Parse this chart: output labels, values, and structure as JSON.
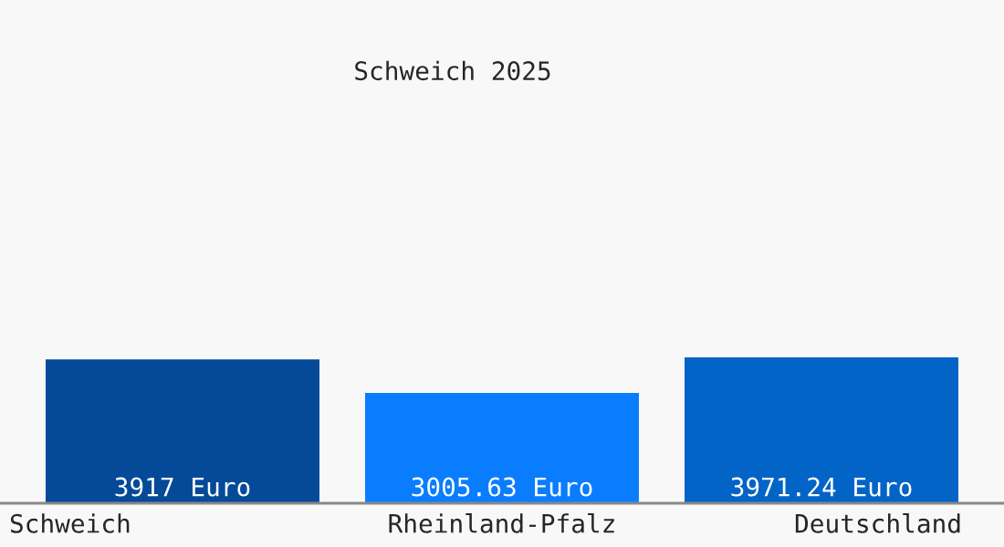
{
  "chart_data": {
    "type": "bar",
    "title": "Schweich 2025",
    "categories": [
      "Schweich",
      "Rheinland-Pfalz",
      "Deutschland"
    ],
    "values": [
      3917,
      3005.63,
      3971.24
    ],
    "colors": [
      "#044a98",
      "#0a7dff",
      "#0364c8"
    ],
    "value_labels": [
      "3917 Euro",
      "3005.63 Euro",
      "3971.24 Euro"
    ],
    "grid": false,
    "legend": false
  }
}
